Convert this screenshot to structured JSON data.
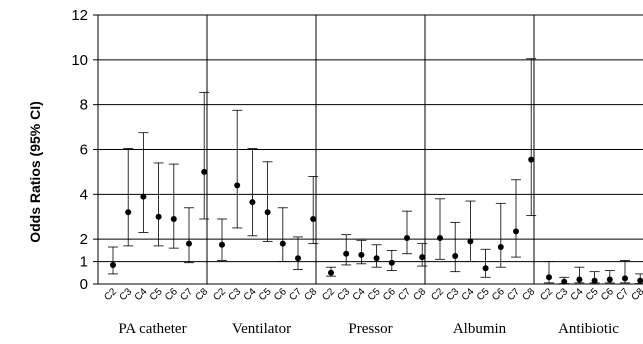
{
  "chart_data": {
    "type": "scatter",
    "subtype": "error-bar dot plot",
    "ylabel": "Odds Ratios (95% CI)",
    "ylim": [
      0,
      12
    ],
    "yticks": [
      0,
      1,
      2,
      4,
      6,
      8,
      10,
      12
    ],
    "grid": "horizontal at 1, 2, 4, 6, 8, 10, 12; vertical panel separators",
    "category_labels": [
      "C2",
      "C3",
      "C4",
      "C5",
      "C6",
      "C7",
      "C8"
    ],
    "groups": [
      {
        "name": "PA catheter",
        "points": [
          {
            "category": "C2",
            "or": 0.85,
            "lower": 0.45,
            "upper": 1.65
          },
          {
            "category": "C3",
            "or": 3.2,
            "lower": 1.7,
            "upper": 6.05
          },
          {
            "category": "C4",
            "or": 3.9,
            "lower": 2.3,
            "upper": 6.75
          },
          {
            "category": "C5",
            "or": 3.0,
            "lower": 1.7,
            "upper": 5.4
          },
          {
            "category": "C6",
            "or": 2.9,
            "lower": 1.6,
            "upper": 5.35
          },
          {
            "category": "C7",
            "or": 1.8,
            "lower": 0.95,
            "upper": 3.4
          },
          {
            "category": "C8",
            "or": 5.0,
            "lower": 2.9,
            "upper": 8.55
          }
        ]
      },
      {
        "name": "Ventilator",
        "points": [
          {
            "category": "C2",
            "or": 1.75,
            "lower": 1.05,
            "upper": 2.9
          },
          {
            "category": "C3",
            "or": 4.4,
            "lower": 2.5,
            "upper": 7.75
          },
          {
            "category": "C4",
            "or": 3.65,
            "lower": 2.15,
            "upper": 6.05
          },
          {
            "category": "C5",
            "or": 3.2,
            "lower": 1.9,
            "upper": 5.45
          },
          {
            "category": "C6",
            "or": 1.8,
            "lower": 1.0,
            "upper": 3.4
          },
          {
            "category": "C7",
            "or": 1.15,
            "lower": 0.65,
            "upper": 2.1
          },
          {
            "category": "C8",
            "or": 2.9,
            "lower": 1.8,
            "upper": 4.8
          }
        ]
      },
      {
        "name": "Pressor",
        "points": [
          {
            "category": "C2",
            "or": 0.5,
            "lower": 0.35,
            "upper": 0.75
          },
          {
            "category": "C3",
            "or": 1.35,
            "lower": 0.85,
            "upper": 2.2
          },
          {
            "category": "C4",
            "or": 1.3,
            "lower": 0.9,
            "upper": 1.95
          },
          {
            "category": "C5",
            "or": 1.15,
            "lower": 0.75,
            "upper": 1.75
          },
          {
            "category": "C6",
            "or": 0.95,
            "lower": 0.6,
            "upper": 1.5
          },
          {
            "category": "C7",
            "or": 2.05,
            "lower": 1.35,
            "upper": 3.25
          },
          {
            "category": "C8",
            "or": 1.2,
            "lower": 0.8,
            "upper": 1.8
          }
        ]
      },
      {
        "name": "Albumin",
        "points": [
          {
            "category": "C2",
            "or": 2.05,
            "lower": 1.1,
            "upper": 3.8
          },
          {
            "category": "C3",
            "or": 1.25,
            "lower": 0.55,
            "upper": 2.75
          },
          {
            "category": "C4",
            "or": 1.9,
            "lower": 1.0,
            "upper": 3.7
          },
          {
            "category": "C5",
            "or": 0.7,
            "lower": 0.3,
            "upper": 1.55
          },
          {
            "category": "C6",
            "or": 1.65,
            "lower": 0.75,
            "upper": 3.6
          },
          {
            "category": "C7",
            "or": 2.35,
            "lower": 1.2,
            "upper": 4.65
          },
          {
            "category": "C8",
            "or": 5.55,
            "lower": 3.05,
            "upper": 10.05
          }
        ]
      },
      {
        "name": "Antibiotic",
        "points": [
          {
            "category": "C2",
            "or": 0.3,
            "lower": 0.05,
            "upper": 1.0
          },
          {
            "category": "C3",
            "or": 0.1,
            "lower": 0.02,
            "upper": 0.3
          },
          {
            "category": "C4",
            "or": 0.2,
            "lower": 0.05,
            "upper": 0.75
          },
          {
            "category": "C5",
            "or": 0.15,
            "lower": 0.05,
            "upper": 0.55
          },
          {
            "category": "C6",
            "or": 0.2,
            "lower": 0.05,
            "upper": 0.6
          },
          {
            "category": "C7",
            "or": 0.25,
            "lower": 0.05,
            "upper": 1.05
          },
          {
            "category": "C8",
            "or": 0.15,
            "lower": 0.02,
            "upper": 0.45
          }
        ]
      }
    ]
  }
}
